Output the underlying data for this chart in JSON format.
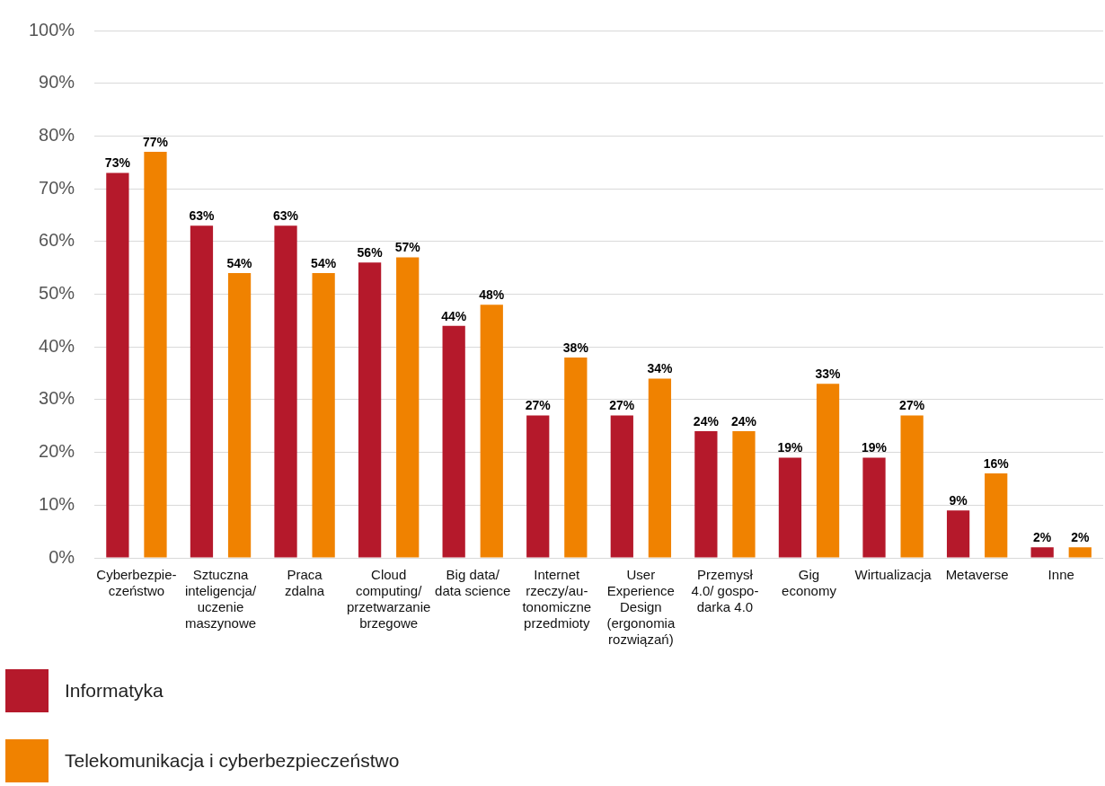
{
  "chart_data": {
    "type": "bar",
    "categories": [
      "Cyberbezpie-\nczeństwo",
      "Sztuczna\ninteligencja/\nuczenie\nmaszynowe",
      "Praca\nzdalna",
      "Cloud\ncomputing/\nprzetwarzanie\nbrzegowe",
      "Big data/\ndata science",
      "Internet\nrzeczy/au-\ntonomiczne\nprzedmioty",
      "User\nExperience\nDesign\n(ergonomia\nrozwiązań)",
      "Przemysł\n4.0/ gospo-\ndarka 4.0",
      "Gig\neconomy",
      "Wirtualizacja",
      "Metaverse",
      "Inne"
    ],
    "series": [
      {
        "name": "Informatyka",
        "color": "#b5192b",
        "values": [
          73,
          63,
          63,
          56,
          44,
          27,
          27,
          24,
          19,
          19,
          9,
          2
        ],
        "value_labels": [
          "73%",
          "63%",
          "63%",
          "56%",
          "44%",
          "27%",
          "27%",
          "24%",
          "19%",
          "19%",
          "9%",
          "2%"
        ]
      },
      {
        "name": "Telekomunikacja i cyberbezpieczeństwo",
        "color": "#f08200",
        "values": [
          77,
          54,
          54,
          57,
          48,
          38,
          34,
          24,
          33,
          27,
          16,
          2
        ],
        "value_labels": [
          "77%",
          "54%",
          "54%",
          "57%",
          "48%",
          "38%",
          "34%",
          "24%",
          "33%",
          "27%",
          "16%",
          "2%"
        ]
      }
    ],
    "ylim": [
      0,
      100
    ],
    "yticks": [
      {
        "value": 0,
        "label": "0%"
      },
      {
        "value": 10,
        "label": "10%"
      },
      {
        "value": 20,
        "label": "20%"
      },
      {
        "value": 30,
        "label": "30%"
      },
      {
        "value": 40,
        "label": "40%"
      },
      {
        "value": 50,
        "label": "50%"
      },
      {
        "value": 60,
        "label": "60%"
      },
      {
        "value": 70,
        "label": "70%"
      },
      {
        "value": 80,
        "label": "80%"
      },
      {
        "value": 90,
        "label": "90%"
      },
      {
        "value": 100,
        "label": "100%"
      }
    ],
    "grid": "y",
    "legend": "bottom left"
  }
}
